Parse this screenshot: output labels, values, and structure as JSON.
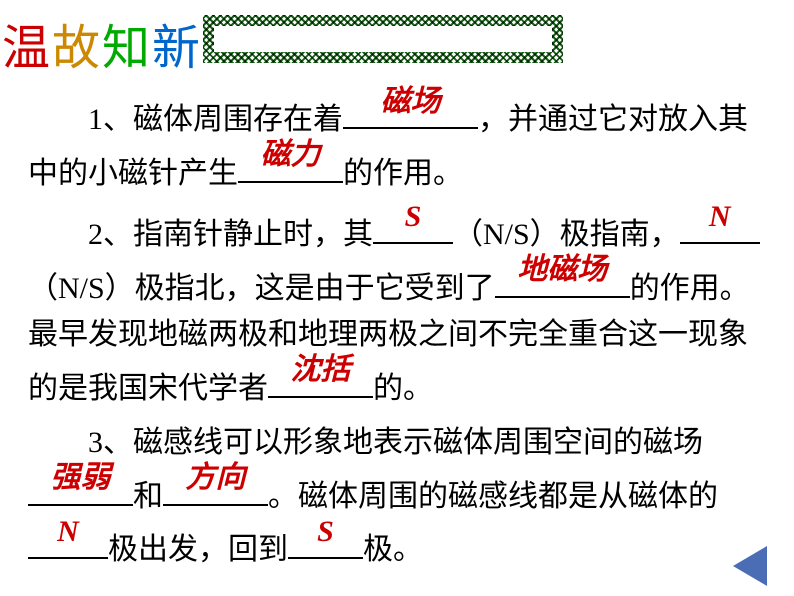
{
  "title": {
    "chars": [
      "温",
      "故",
      "知",
      "新"
    ],
    "colors": [
      "#cc0000",
      "#cc8800",
      "#00aa00",
      "#0066cc"
    ]
  },
  "questions": {
    "q1": {
      "prefix": "1、磁体周围存在着",
      "blank1": "磁场",
      "mid1": "，并通过它对放入其中的小磁针产生",
      "blank2": "磁力",
      "suffix": "的作用。"
    },
    "q2": {
      "prefix": "2、指南针静止时，其",
      "blank1": "S",
      "mid1": "（N/S）极指南，",
      "blank2": "N",
      "mid2": "（N/S）极指北，这是由于它受到了",
      "blank3": "地磁场",
      "mid3": "的作用。最早发现地磁两极和地理两极之间不完全重合这一现象的是我国宋代学者",
      "blank4": "沈括",
      "suffix": "的。"
    },
    "q3": {
      "prefix": "3、磁感线可以形象地表示磁体周围空间的磁场",
      "blank1": "强弱",
      "mid1": "和",
      "blank2": "方向",
      "mid2": "。磁体周围的磁感线都是从磁体的",
      "blank3": "N",
      "mid3": "极出发，回到",
      "blank4": "S",
      "suffix": "极。"
    }
  },
  "colors": {
    "answer": "#cc0000",
    "text": "#000000",
    "border_pattern": "#1a5c1a",
    "nav_arrow": "#4a6db5",
    "background": "#ffffff"
  },
  "typography": {
    "title_fontsize": 48,
    "body_fontsize": 30,
    "line_height": 1.55
  }
}
